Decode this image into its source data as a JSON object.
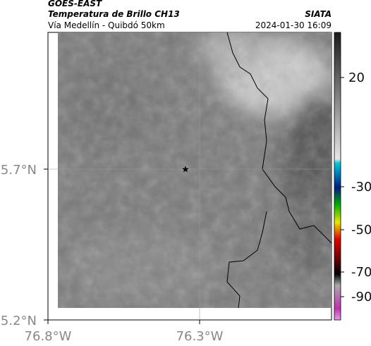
{
  "header": {
    "source": "GOES-EAST",
    "product": "Temperatura de Brillo CH13",
    "region": "Vía Medellín - Quibdó 50km",
    "agency": "SIATA",
    "timestamp": "2024-01-30 16:09"
  },
  "map": {
    "lat_labels": [
      "5.7°N",
      "5.2°N"
    ],
    "lon_labels": [
      "76.8°W",
      "76.3°W"
    ]
  },
  "colorbar": {
    "labels": [
      20,
      -30,
      -50,
      -70,
      -90
    ]
  }
}
